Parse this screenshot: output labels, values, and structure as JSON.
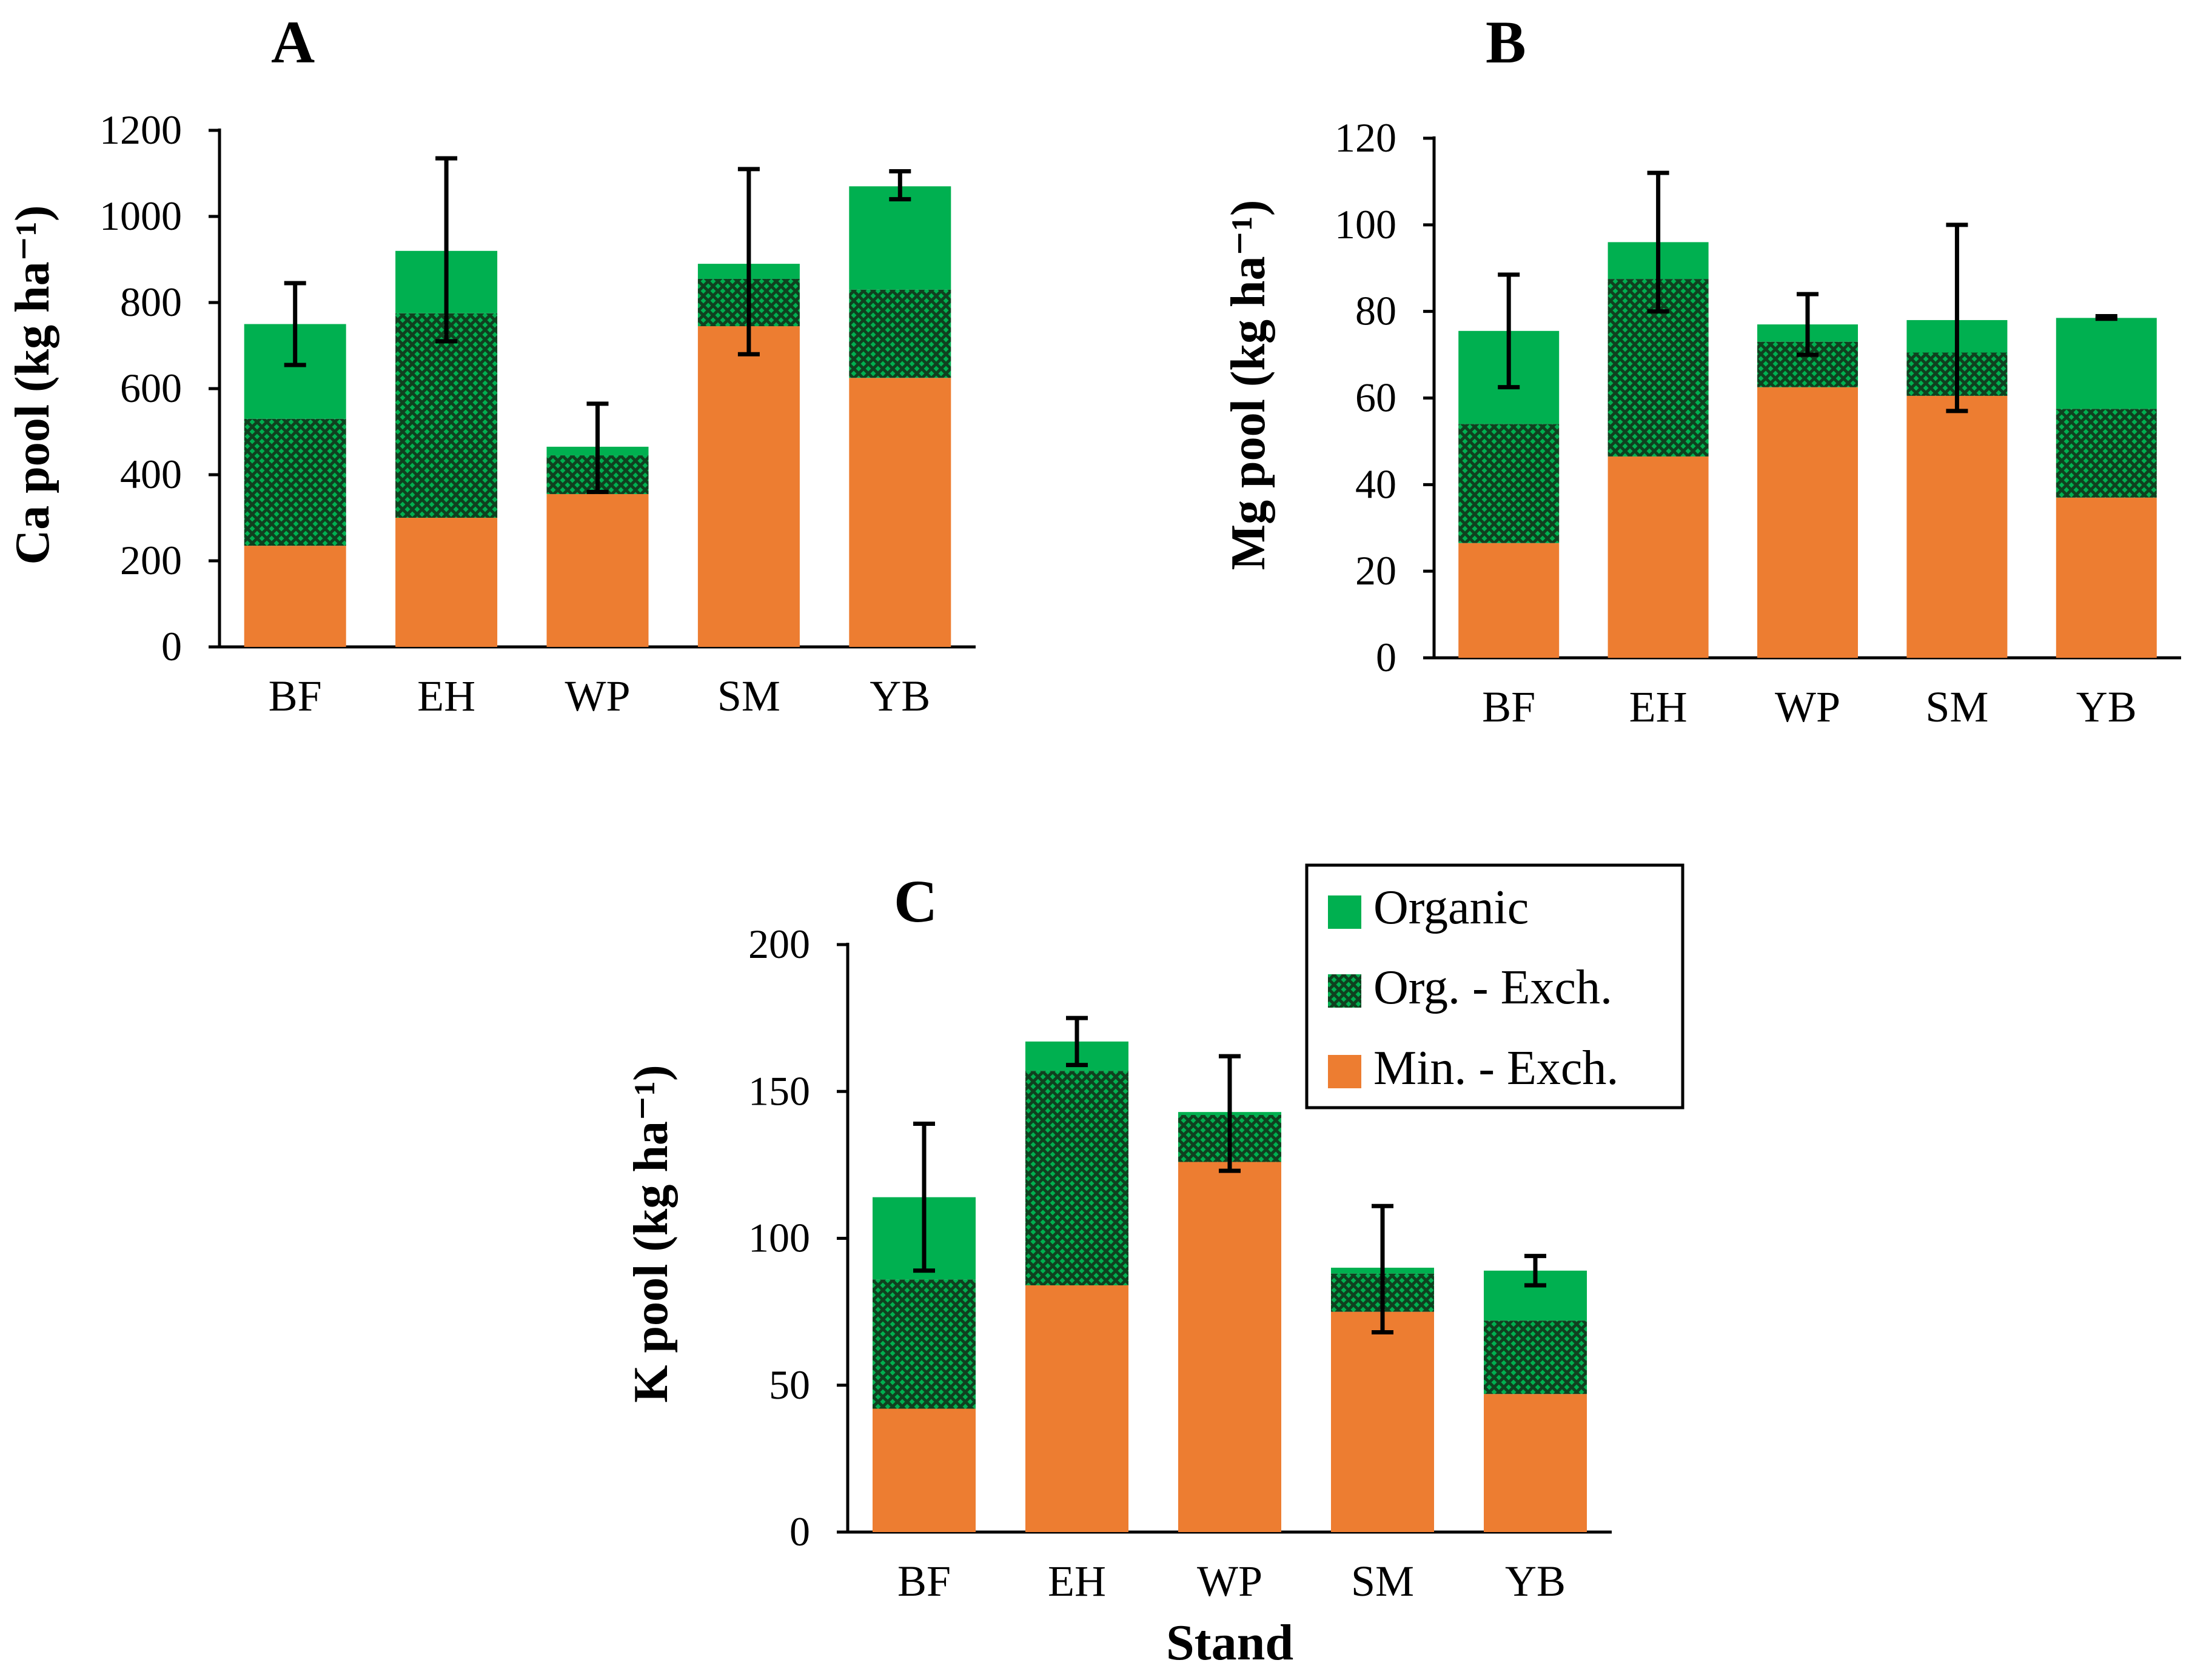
{
  "colors": {
    "organic": "#00b050",
    "org_exch": "#00b050",
    "min_exch": "#ed7d31",
    "axis": "#000000"
  },
  "legend": {
    "items": [
      {
        "key": "organic",
        "label": "Organic",
        "pattern": "solid-green"
      },
      {
        "key": "org_exch",
        "label": "Org. - Exch.",
        "pattern": "crosshatch-green"
      },
      {
        "key": "min_exch",
        "label": "Min. - Exch.",
        "pattern": "solid-orange"
      }
    ]
  },
  "chart_data": [
    {
      "panel": "A",
      "type": "bar",
      "stacked": true,
      "categories": [
        "BF",
        "EH",
        "WP",
        "SM",
        "YB"
      ],
      "ylabel": "Ca pool (kg ha⁻¹)",
      "xlabel": "",
      "ylim": [
        0,
        1200
      ],
      "yticks": [
        0,
        200,
        400,
        600,
        800,
        1000,
        1200
      ],
      "series": [
        {
          "name": "Min. - Exch.",
          "values": [
            235,
            300,
            355,
            745,
            625
          ]
        },
        {
          "name": "Org. - Exch.",
          "values": [
            295,
            475,
            90,
            110,
            205
          ]
        },
        {
          "name": "Organic",
          "values": [
            220,
            145,
            20,
            35,
            240
          ]
        }
      ],
      "error_bars": [
        {
          "low": 655,
          "high": 845
        },
        {
          "low": 710,
          "high": 1135
        },
        {
          "low": 360,
          "high": 565
        },
        {
          "low": 680,
          "high": 1110
        },
        {
          "low": 1040,
          "high": 1105
        }
      ]
    },
    {
      "panel": "B",
      "type": "bar",
      "stacked": true,
      "categories": [
        "BF",
        "EH",
        "WP",
        "SM",
        "YB"
      ],
      "ylabel": "Mg pool (kg ha⁻¹)",
      "xlabel": "",
      "ylim": [
        0,
        120
      ],
      "yticks": [
        0,
        20,
        40,
        60,
        80,
        100,
        120
      ],
      "series": [
        {
          "name": "Min. - Exch.",
          "values": [
            26.5,
            46.5,
            62.5,
            60.5,
            37
          ]
        },
        {
          "name": "Org. - Exch.",
          "values": [
            27.5,
            41,
            10.5,
            10,
            20.5
          ]
        },
        {
          "name": "Organic",
          "values": [
            21.5,
            8.5,
            4,
            7.5,
            21
          ]
        }
      ],
      "error_bars": [
        {
          "low": 62.5,
          "high": 88.5
        },
        {
          "low": 80,
          "high": 112
        },
        {
          "low": 70,
          "high": 84
        },
        {
          "low": 57,
          "high": 100
        },
        {
          "low": 78.3,
          "high": 78.9
        }
      ]
    },
    {
      "panel": "C",
      "type": "bar",
      "stacked": true,
      "categories": [
        "BF",
        "EH",
        "WP",
        "SM",
        "YB"
      ],
      "ylabel": "K pool (kg ha⁻¹)",
      "xlabel": "Stand",
      "ylim": [
        0,
        200
      ],
      "yticks": [
        0,
        50,
        100,
        150,
        200
      ],
      "series": [
        {
          "name": "Min. - Exch.",
          "values": [
            42,
            84,
            126,
            75,
            47
          ]
        },
        {
          "name": "Org. - Exch.",
          "values": [
            44,
            73,
            16,
            13,
            25
          ]
        },
        {
          "name": "Organic",
          "values": [
            28,
            10,
            1,
            2,
            17
          ]
        }
      ],
      "error_bars": [
        {
          "low": 89,
          "high": 139
        },
        {
          "low": 159,
          "high": 175
        },
        {
          "low": 123,
          "high": 162
        },
        {
          "low": 68,
          "high": 111
        },
        {
          "low": 84,
          "high": 94
        }
      ]
    }
  ]
}
